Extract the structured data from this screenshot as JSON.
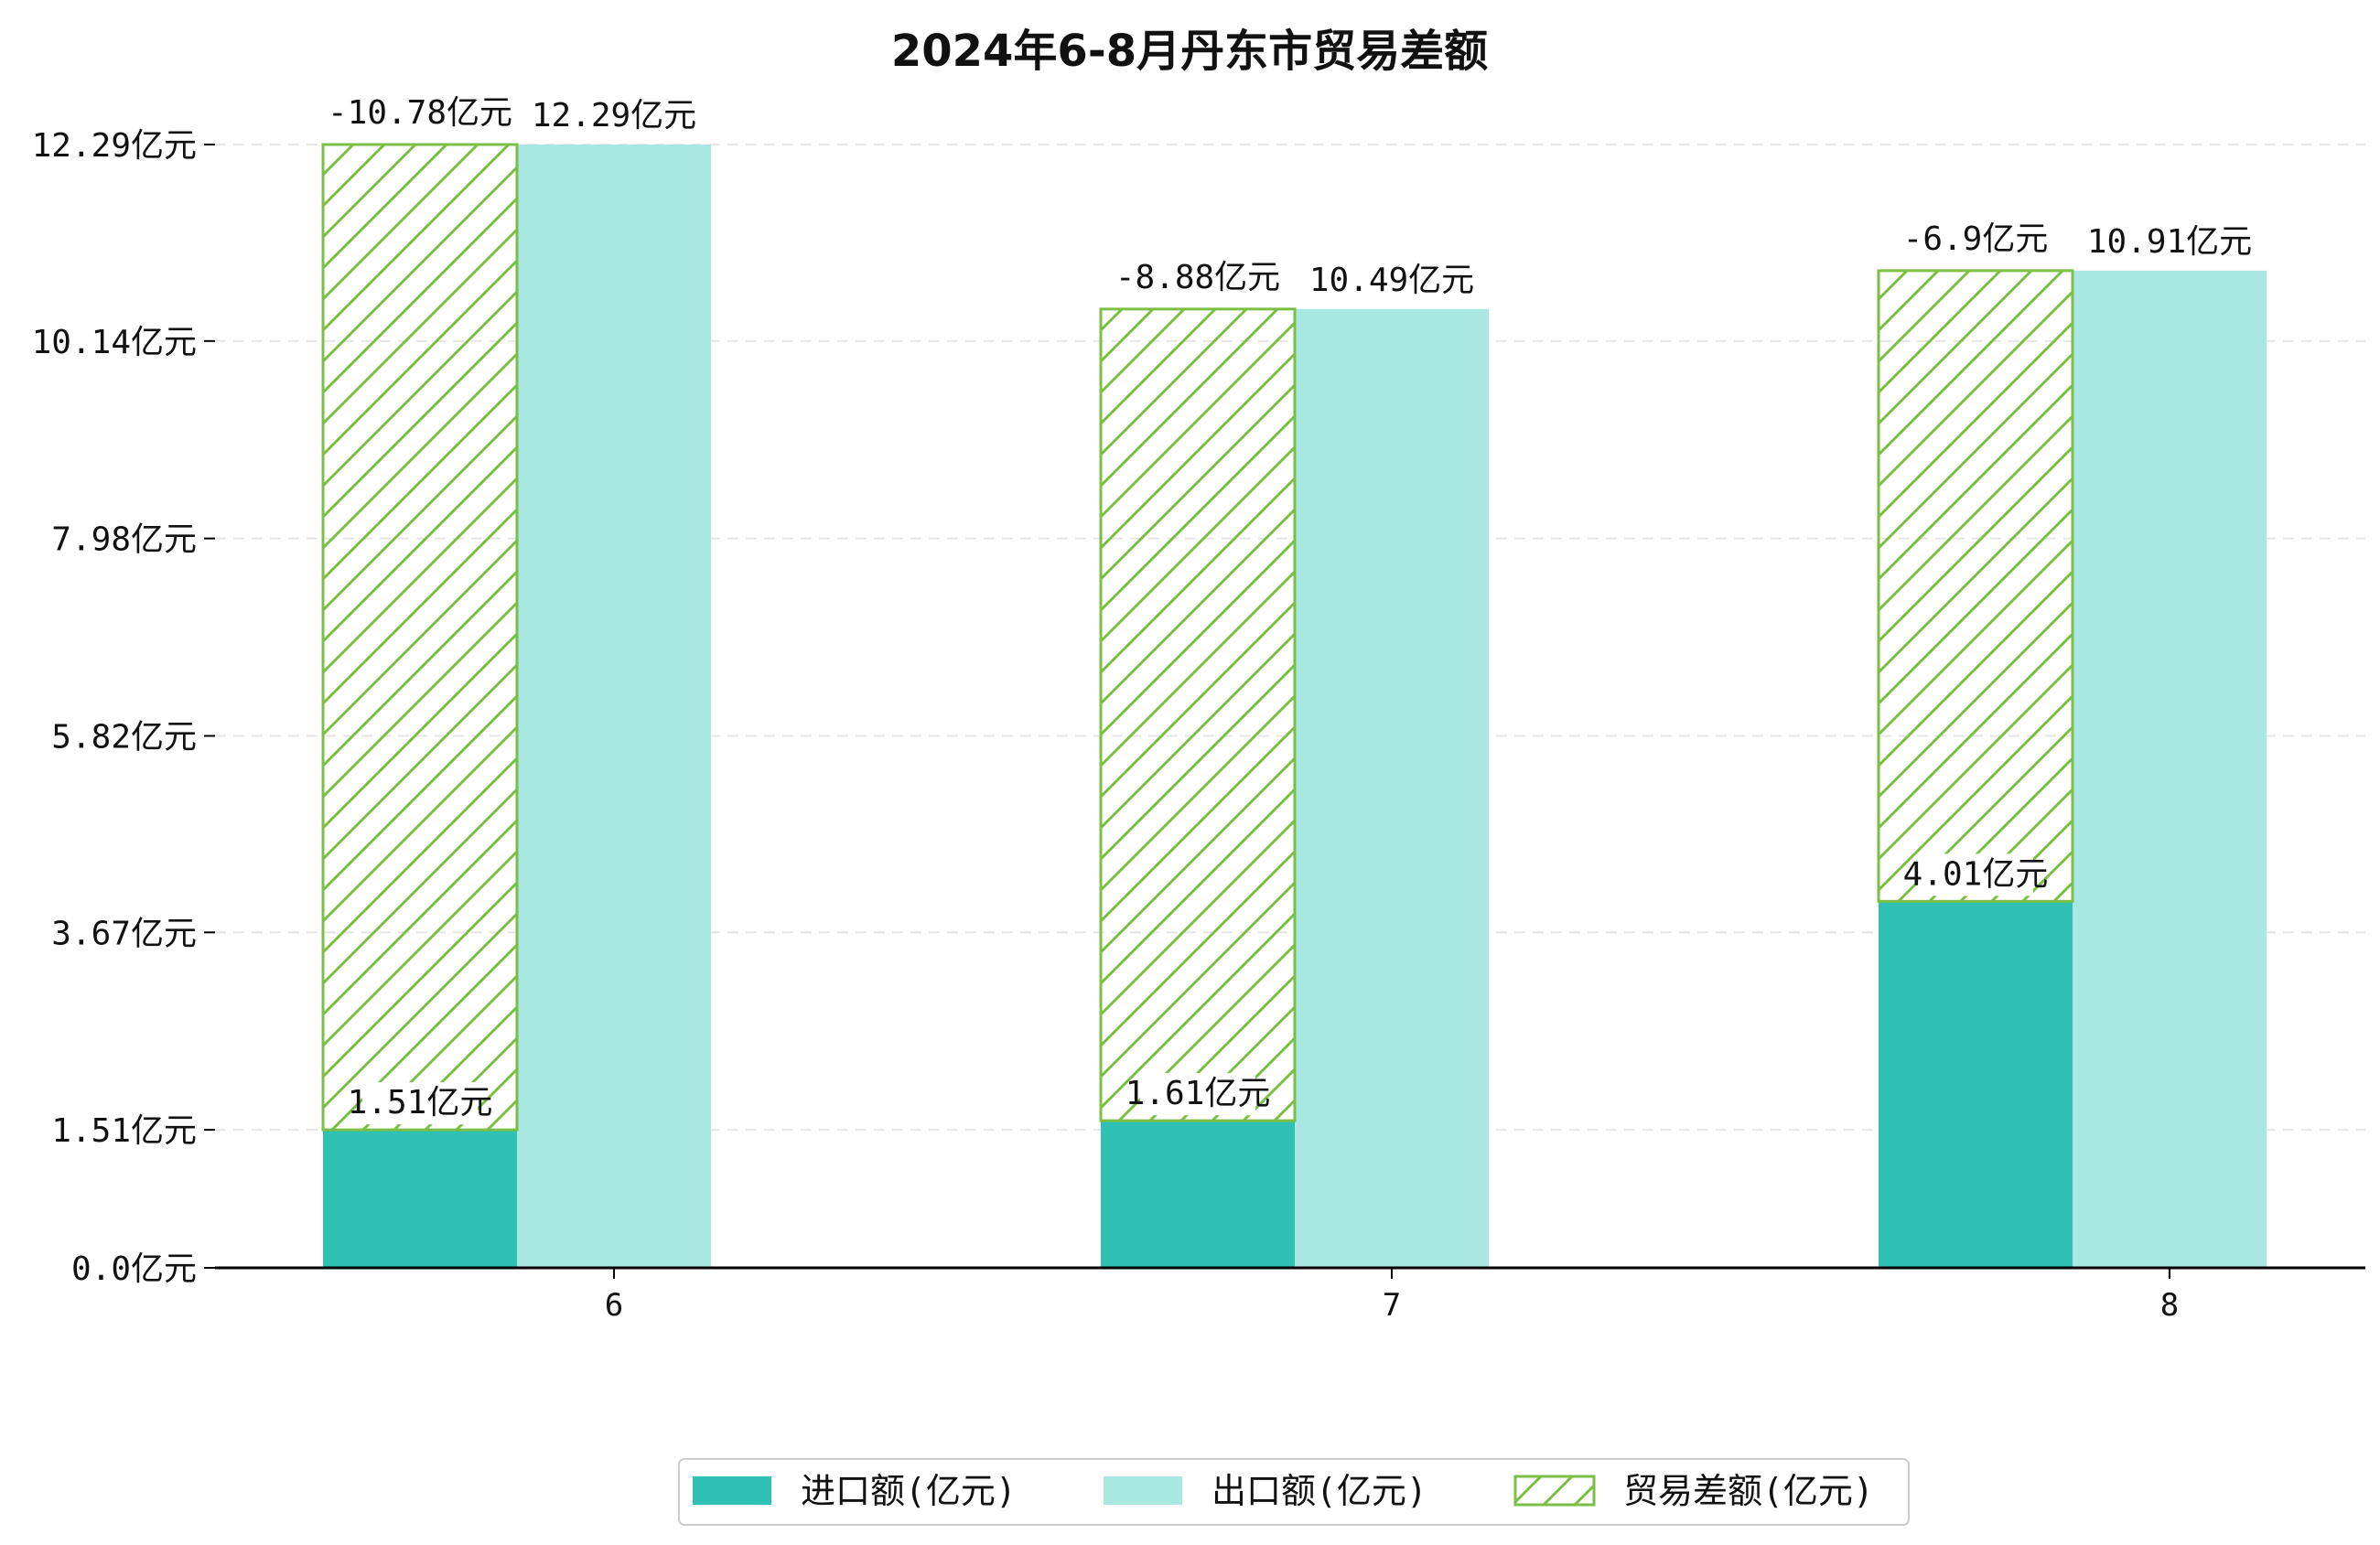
{
  "chart_data": {
    "type": "bar",
    "title": "2024年6-8月丹东市贸易差额",
    "categories": [
      "6",
      "7",
      "8"
    ],
    "unit": "亿元",
    "series": [
      {
        "name": "进口额(亿元)",
        "values": [
          1.51,
          1.61,
          4.01
        ],
        "labels": [
          "1.51亿元",
          "1.61亿元",
          "4.01亿元"
        ]
      },
      {
        "name": "出口额(亿元)",
        "values": [
          12.29,
          10.49,
          10.91
        ],
        "labels": [
          "12.29亿元",
          "10.49亿元",
          "10.91亿元"
        ]
      },
      {
        "name": "贸易差额(亿元)",
        "values": [
          -10.78,
          -8.88,
          -6.9
        ],
        "labels": [
          "-10.78亿元",
          "-8.88亿元",
          "-6.9亿元"
        ]
      }
    ],
    "yticks": [
      0.0,
      1.51,
      3.67,
      5.82,
      7.98,
      10.14,
      12.29
    ],
    "ytick_labels": [
      "0.0亿元",
      "1.51亿元",
      "3.67亿元",
      "5.82亿元",
      "7.98亿元",
      "10.14亿元",
      "12.29亿元"
    ],
    "ylim": [
      0,
      12.29
    ],
    "grid": true,
    "legend_position": "bottom-center",
    "xlabel": "",
    "ylabel": ""
  },
  "colors": {
    "import": "#2ec1b4",
    "export": "#a8e7e2",
    "balance": "#7bbf45",
    "grid": "#e6e6e6",
    "axis": "#000000"
  }
}
